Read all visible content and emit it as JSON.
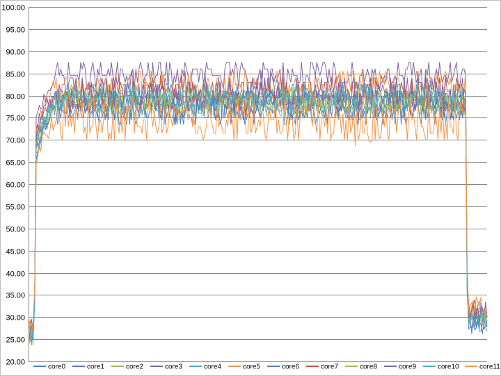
{
  "chart_data": {
    "type": "line",
    "title": "",
    "xlabel": "",
    "ylabel": "",
    "ylim": [
      20,
      100
    ],
    "y_ticks": [
      "20.00",
      "25.00",
      "30.00",
      "35.00",
      "40.00",
      "45.00",
      "50.00",
      "55.00",
      "60.00",
      "65.00",
      "70.00",
      "75.00",
      "80.00",
      "85.00",
      "90.00",
      "95.00",
      "100.00"
    ],
    "grid": "horizontal",
    "legend_position": "bottom",
    "sample_count": 300,
    "phases": {
      "idle_start_samples": 4,
      "ramp_samples": 14,
      "idle_end_samples": 14
    },
    "series": [
      {
        "name": "core0",
        "color": "#4F81BD",
        "idle_level": 26,
        "ramp_start": 62,
        "plateau": 78,
        "spread": 4,
        "end_level": 30
      },
      {
        "name": "core1",
        "color": "#4F81BD",
        "idle_level": 27,
        "ramp_start": 66,
        "plateau": 77.5,
        "spread": 3,
        "end_level": 29
      },
      {
        "name": "core2",
        "color": "#9BBB59",
        "idle_level": 26,
        "ramp_start": 65,
        "plateau": 78.5,
        "spread": 3,
        "end_level": 30
      },
      {
        "name": "core3",
        "color": "#8064A2",
        "idle_level": 27,
        "ramp_start": 70,
        "plateau": 84.5,
        "spread": 3,
        "end_level": 31
      },
      {
        "name": "core4",
        "color": "#4BACC6",
        "idle_level": 26,
        "ramp_start": 64,
        "plateau": 79.5,
        "spread": 2,
        "end_level": 29
      },
      {
        "name": "core5",
        "color": "#F79646",
        "idle_level": 27,
        "ramp_start": 66,
        "plateau": 82.5,
        "spread": 3,
        "end_level": 31
      },
      {
        "name": "core6",
        "color": "#4F81BD",
        "idle_level": 25,
        "ramp_start": 64,
        "plateau": 76.5,
        "spread": 3,
        "end_level": 28
      },
      {
        "name": "core7",
        "color": "#C0504D",
        "idle_level": 27,
        "ramp_start": 67,
        "plateau": 80,
        "spread": 4,
        "end_level": 32
      },
      {
        "name": "core8",
        "color": "#9BBB59",
        "idle_level": 26,
        "ramp_start": 65,
        "plateau": 79,
        "spread": 3,
        "end_level": 30
      },
      {
        "name": "core9",
        "color": "#8064A2",
        "idle_level": 27,
        "ramp_start": 68,
        "plateau": 81,
        "spread": 4,
        "end_level": 31
      },
      {
        "name": "core10",
        "color": "#4BACC6",
        "idle_level": 26,
        "ramp_start": 64,
        "plateau": 79.5,
        "spread": 3,
        "end_level": 29
      },
      {
        "name": "core11",
        "color": "#F79646",
        "idle_level": 27,
        "ramp_start": 63,
        "plateau": 74.5,
        "spread": 5,
        "end_level": 33
      }
    ]
  }
}
